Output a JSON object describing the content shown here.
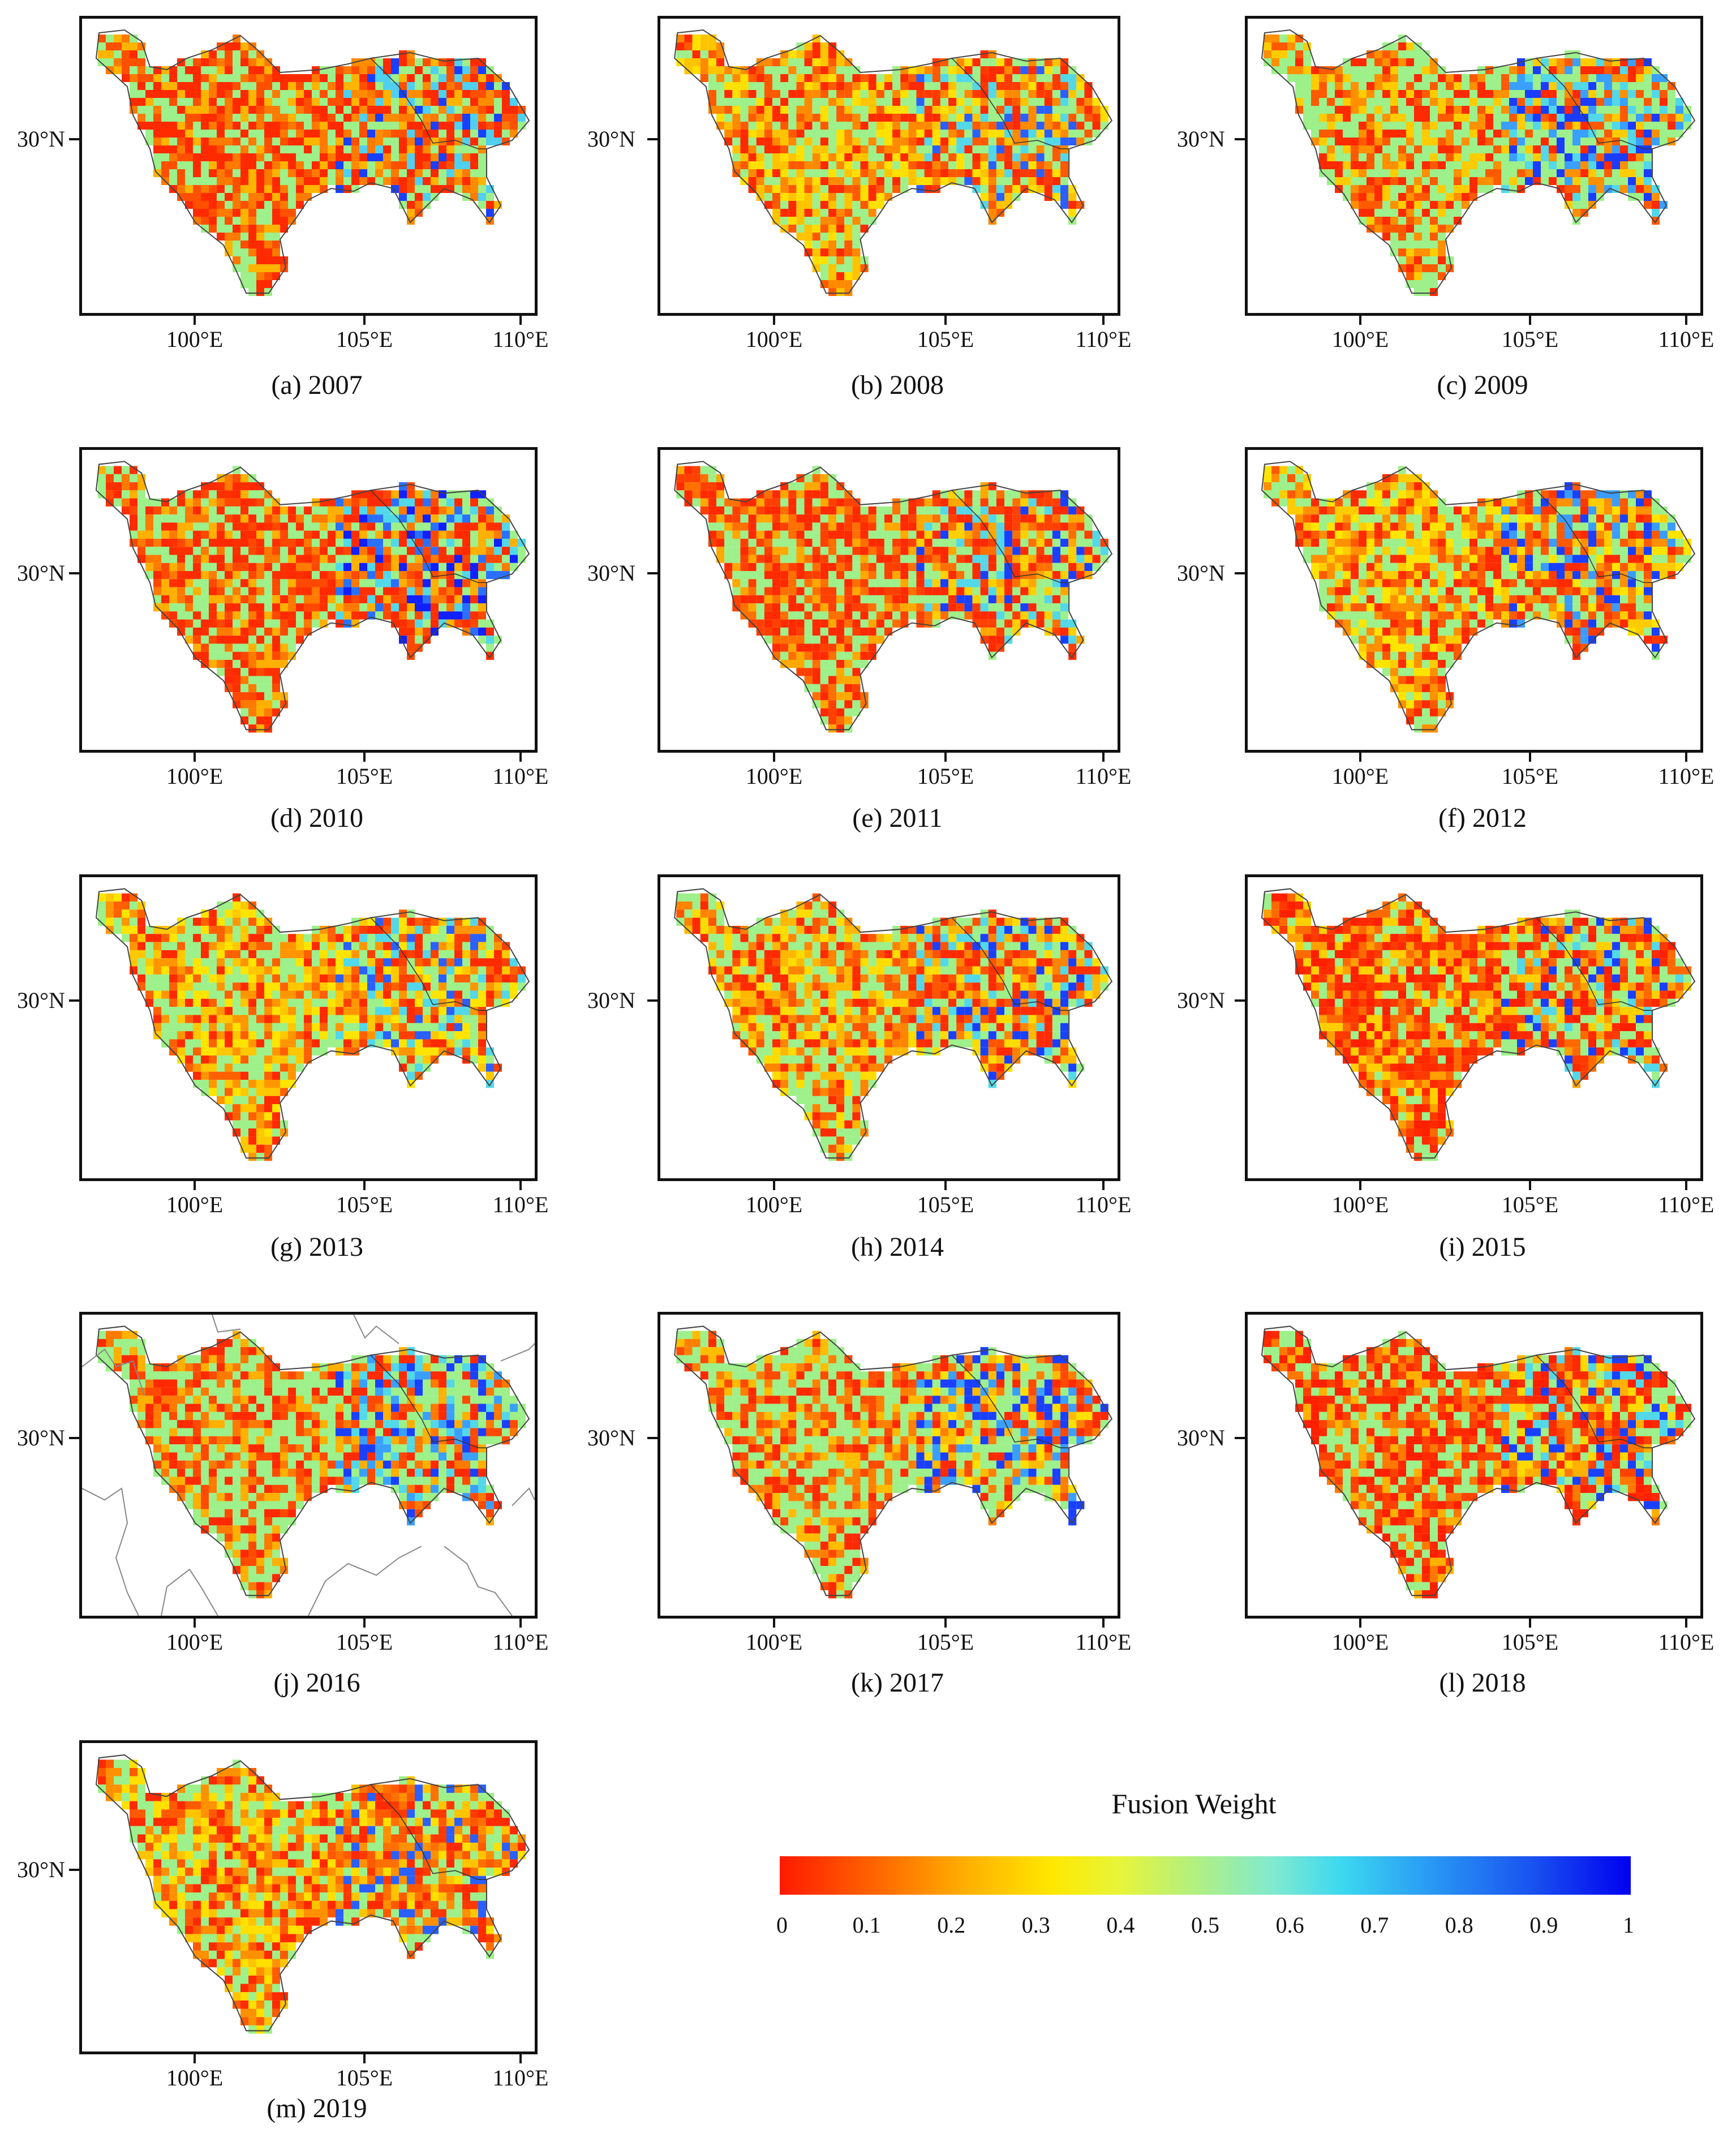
{
  "panels": [
    {
      "id": "a",
      "caption": "(a) 2007",
      "palette": [
        "#ff2a00",
        "#ff5000",
        "#ff7a00",
        "#ffb400",
        "#9df08a",
        "#9df08a",
        "#ff2a00",
        "#ff8c00",
        "#1a40ff",
        "#4fd0f0"
      ],
      "boundaries": false
    },
    {
      "id": "b",
      "caption": "(b) 2008",
      "palette": [
        "#ff2a00",
        "#ff5a00",
        "#ff8a00",
        "#ffc400",
        "#ffe000",
        "#9df08a",
        "#9df08a",
        "#ff3a00",
        "#2a60ff",
        "#52d8e8"
      ],
      "boundaries": false
    },
    {
      "id": "c",
      "caption": "(c) 2009",
      "palette": [
        "#ff2a00",
        "#ff5a00",
        "#ff9000",
        "#ffcc00",
        "#9df08a",
        "#9df08a",
        "#9df08a",
        "#1a3cff",
        "#3aa0ff",
        "#52d8e8"
      ],
      "boundaries": false
    },
    {
      "id": "d",
      "caption": "(d) 2010",
      "palette": [
        "#ff2a00",
        "#ff4800",
        "#ff7a00",
        "#ffb000",
        "#9df08a",
        "#9df08a",
        "#ff3000",
        "#1020ff",
        "#2a70ff",
        "#52d8e8"
      ],
      "boundaries": false
    },
    {
      "id": "e",
      "caption": "(e) 2011",
      "palette": [
        "#ff2a00",
        "#ff4000",
        "#ff7000",
        "#ffa800",
        "#9df08a",
        "#9df08a",
        "#ff2a00",
        "#1a40ff",
        "#ffd000",
        "#52d8e8"
      ],
      "boundaries": false
    },
    {
      "id": "f",
      "caption": "(f) 2012",
      "palette": [
        "#ff2a00",
        "#ff5a00",
        "#ff9000",
        "#ffcc00",
        "#ffe400",
        "#9df08a",
        "#9df08a",
        "#1a40ff",
        "#3a9cff",
        "#ff3a00"
      ],
      "boundaries": false
    },
    {
      "id": "g",
      "caption": "(g) 2013",
      "palette": [
        "#ff2a00",
        "#ff6000",
        "#ff9600",
        "#ffc800",
        "#ffe400",
        "#9df08a",
        "#9df08a",
        "#ff4000",
        "#2a60ff",
        "#52d8e8"
      ],
      "boundaries": false
    },
    {
      "id": "h",
      "caption": "(h) 2014",
      "palette": [
        "#ff2a00",
        "#ff5400",
        "#ff8400",
        "#ffb800",
        "#ffdc00",
        "#9df08a",
        "#9df08a",
        "#ff3000",
        "#1a40ff",
        "#52d8e8"
      ],
      "boundaries": false
    },
    {
      "id": "i",
      "caption": "(i) 2015",
      "palette": [
        "#ff2000",
        "#ff3a00",
        "#ff6a00",
        "#ffa000",
        "#ffd000",
        "#9df08a",
        "#ff2a00",
        "#1a40ff",
        "#52d8e8",
        "#9df08a"
      ],
      "boundaries": false
    },
    {
      "id": "j",
      "caption": "(j) 2016",
      "palette": [
        "#ff2a00",
        "#ff4a00",
        "#ff7a00",
        "#ffb000",
        "#9df08a",
        "#9df08a",
        "#9df08a",
        "#1a40ff",
        "#3aa0ff",
        "#52d8e8"
      ],
      "boundaries": true
    },
    {
      "id": "k",
      "caption": "(k) 2017",
      "palette": [
        "#ff2a00",
        "#ff4a00",
        "#ff8000",
        "#ffbc00",
        "#9df08a",
        "#9df08a",
        "#9df08a",
        "#1a40ff",
        "#3aa0ff",
        "#ffe000"
      ],
      "boundaries": false
    },
    {
      "id": "l",
      "caption": "(l) 2018",
      "palette": [
        "#ff2000",
        "#ff4200",
        "#ff7800",
        "#ffb000",
        "#9df08a",
        "#9df08a",
        "#ff2a00",
        "#1a40ff",
        "#ffd800",
        "#52d8e8"
      ],
      "boundaries": false
    },
    {
      "id": "m",
      "caption": "(m) 2019",
      "palette": [
        "#ff2a00",
        "#ff5a00",
        "#ff9000",
        "#ffc400",
        "#ffe000",
        "#9df08a",
        "#9df08a",
        "#ff3a00",
        "#2a60ff",
        "#ff7000"
      ],
      "boundaries": false
    }
  ],
  "axes": {
    "y_tick_label": "30°N",
    "x_tick_labels": [
      "100°E",
      "105°E",
      "110°E"
    ]
  },
  "legend": {
    "title": "Fusion Weight",
    "ticks": [
      "0",
      "0.1",
      "0.2",
      "0.3",
      "0.4",
      "0.5",
      "0.6",
      "0.7",
      "0.8",
      "0.9",
      "1"
    ],
    "color_min": "#ff1a00",
    "color_max": "#0000f0"
  }
}
